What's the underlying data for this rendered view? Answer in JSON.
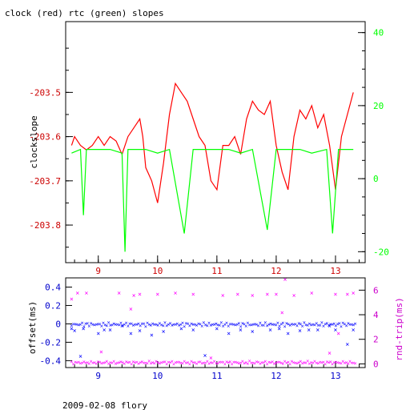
{
  "chart_data": [
    {
      "type": "line",
      "title": "clock (red) rtc (green) slopes",
      "ylabel": "clockslope",
      "xlim": [
        8.45,
        13.5
      ],
      "ylim": [
        -203.885,
        -203.34
      ],
      "y2lim": [
        -23,
        43
      ],
      "x_ticks": [
        "9",
        "10",
        "11",
        "12",
        "13"
      ],
      "y_ticks": [
        "-203.5",
        "-203.6",
        "-203.7",
        "-203.8"
      ],
      "y2_ticks": [
        "40",
        "20",
        "0",
        "-20"
      ],
      "colors": {
        "clock": "#ff0000",
        "rtc": "#00ff00",
        "right_axis": "#00ff00",
        "left_axis": "#cc0000"
      },
      "series": [
        {
          "axis": "left",
          "x": [
            8.55,
            8.6,
            8.7,
            8.8,
            8.9,
            9.0,
            9.1,
            9.2,
            9.3,
            9.4,
            9.5,
            9.6,
            9.7,
            9.75,
            9.8,
            9.9,
            10.0,
            10.1,
            10.2,
            10.3,
            10.4,
            10.5,
            10.6,
            10.7,
            10.8,
            10.9,
            11.0,
            11.1,
            11.2,
            11.3,
            11.4,
            11.5,
            11.6,
            11.7,
            11.8,
            11.9,
            12.0,
            12.1,
            12.2,
            12.3,
            12.4,
            12.5,
            12.6,
            12.7,
            12.8,
            12.9,
            13.0,
            13.1,
            13.2,
            13.3
          ],
          "y": [
            -203.62,
            -203.6,
            -203.62,
            -203.63,
            -203.62,
            -203.6,
            -203.62,
            -203.6,
            -203.61,
            -203.64,
            -203.6,
            -203.58,
            -203.56,
            -203.6,
            -203.67,
            -203.7,
            -203.75,
            -203.66,
            -203.55,
            -203.48,
            -203.5,
            -203.52,
            -203.56,
            -203.6,
            -203.62,
            -203.7,
            -203.72,
            -203.62,
            -203.62,
            -203.6,
            -203.64,
            -203.56,
            -203.52,
            -203.54,
            -203.55,
            -203.52,
            -203.62,
            -203.68,
            -203.72,
            -203.6,
            -203.54,
            -203.56,
            -203.53,
            -203.58,
            -203.55,
            -203.62,
            -203.72,
            -203.6,
            -203.55,
            -203.5
          ]
        },
        {
          "axis": "right",
          "x": [
            8.55,
            8.7,
            8.75,
            8.8,
            9.0,
            9.2,
            9.4,
            9.45,
            9.5,
            9.6,
            9.8,
            10.0,
            10.2,
            10.45,
            10.6,
            10.8,
            11.0,
            11.2,
            11.4,
            11.6,
            11.85,
            12.0,
            12.2,
            12.4,
            12.6,
            12.85,
            12.95,
            13.05,
            13.2,
            13.3
          ],
          "y": [
            7,
            8,
            -10,
            8,
            8,
            8,
            7,
            -20,
            8,
            8,
            8,
            7,
            8,
            -15,
            8,
            8,
            8,
            8,
            7,
            8,
            -14,
            8,
            8,
            8,
            7,
            8,
            -15,
            8,
            8,
            8
          ]
        }
      ]
    },
    {
      "type": "scatter",
      "ylabel": "offset(ms)",
      "y2label": "rnd-trip(ms)",
      "xlim": [
        8.45,
        13.5
      ],
      "ylim": [
        -0.475,
        0.5
      ],
      "y2lim": [
        -0.3,
        7
      ],
      "x_ticks": [
        "9",
        "10",
        "11",
        "12",
        "13"
      ],
      "y_ticks": [
        "0.4",
        "0.2",
        "0",
        "-0.2",
        "-0.4"
      ],
      "y2_ticks": [
        "6",
        "4",
        "2",
        "0"
      ],
      "footer": "2009-02-08 flory",
      "colors": {
        "offset": "#0000ff",
        "rndtrip": "#ff00ff",
        "left_axis": "#0000cc",
        "right_axis": "#cc00cc"
      },
      "series": [
        {
          "axis": "left",
          "x": [
            8.55,
            8.6,
            8.7,
            8.75,
            9.0,
            9.1,
            9.2,
            9.4,
            9.55,
            9.7,
            9.9,
            10.1,
            10.4,
            10.6,
            10.8,
            11.0,
            11.2,
            11.4,
            11.6,
            11.9,
            12.05,
            12.2,
            12.4,
            12.55,
            12.7,
            12.9,
            13.0,
            13.2,
            13.3
          ],
          "y": [
            -0.05,
            -0.07,
            -0.35,
            -0.05,
            -0.1,
            -0.06,
            -0.06,
            -0.02,
            -0.1,
            -0.07,
            -0.12,
            -0.08,
            -0.05,
            -0.06,
            -0.34,
            -0.05,
            -0.1,
            -0.06,
            -0.08,
            -0.06,
            -0.05,
            -0.1,
            -0.07,
            -0.06,
            -0.06,
            -0.02,
            -0.06,
            -0.22,
            -0.06
          ]
        },
        {
          "axis": "right",
          "x": [
            8.55,
            8.65,
            8.8,
            9.05,
            9.35,
            9.55,
            9.6,
            9.7,
            10.0,
            10.3,
            10.6,
            10.9,
            11.1,
            11.35,
            11.6,
            11.85,
            12.0,
            12.1,
            12.15,
            12.3,
            12.6,
            12.9,
            13.0,
            13.05,
            13.2,
            13.3
          ],
          "y": [
            5.3,
            5.8,
            5.8,
            1.0,
            5.8,
            4.5,
            5.6,
            5.7,
            5.7,
            5.8,
            5.7,
            0.5,
            5.6,
            5.7,
            5.6,
            5.7,
            5.7,
            4.2,
            6.9,
            5.6,
            5.8,
            0.9,
            5.7,
            2.5,
            5.7,
            5.8
          ]
        }
      ]
    }
  ]
}
